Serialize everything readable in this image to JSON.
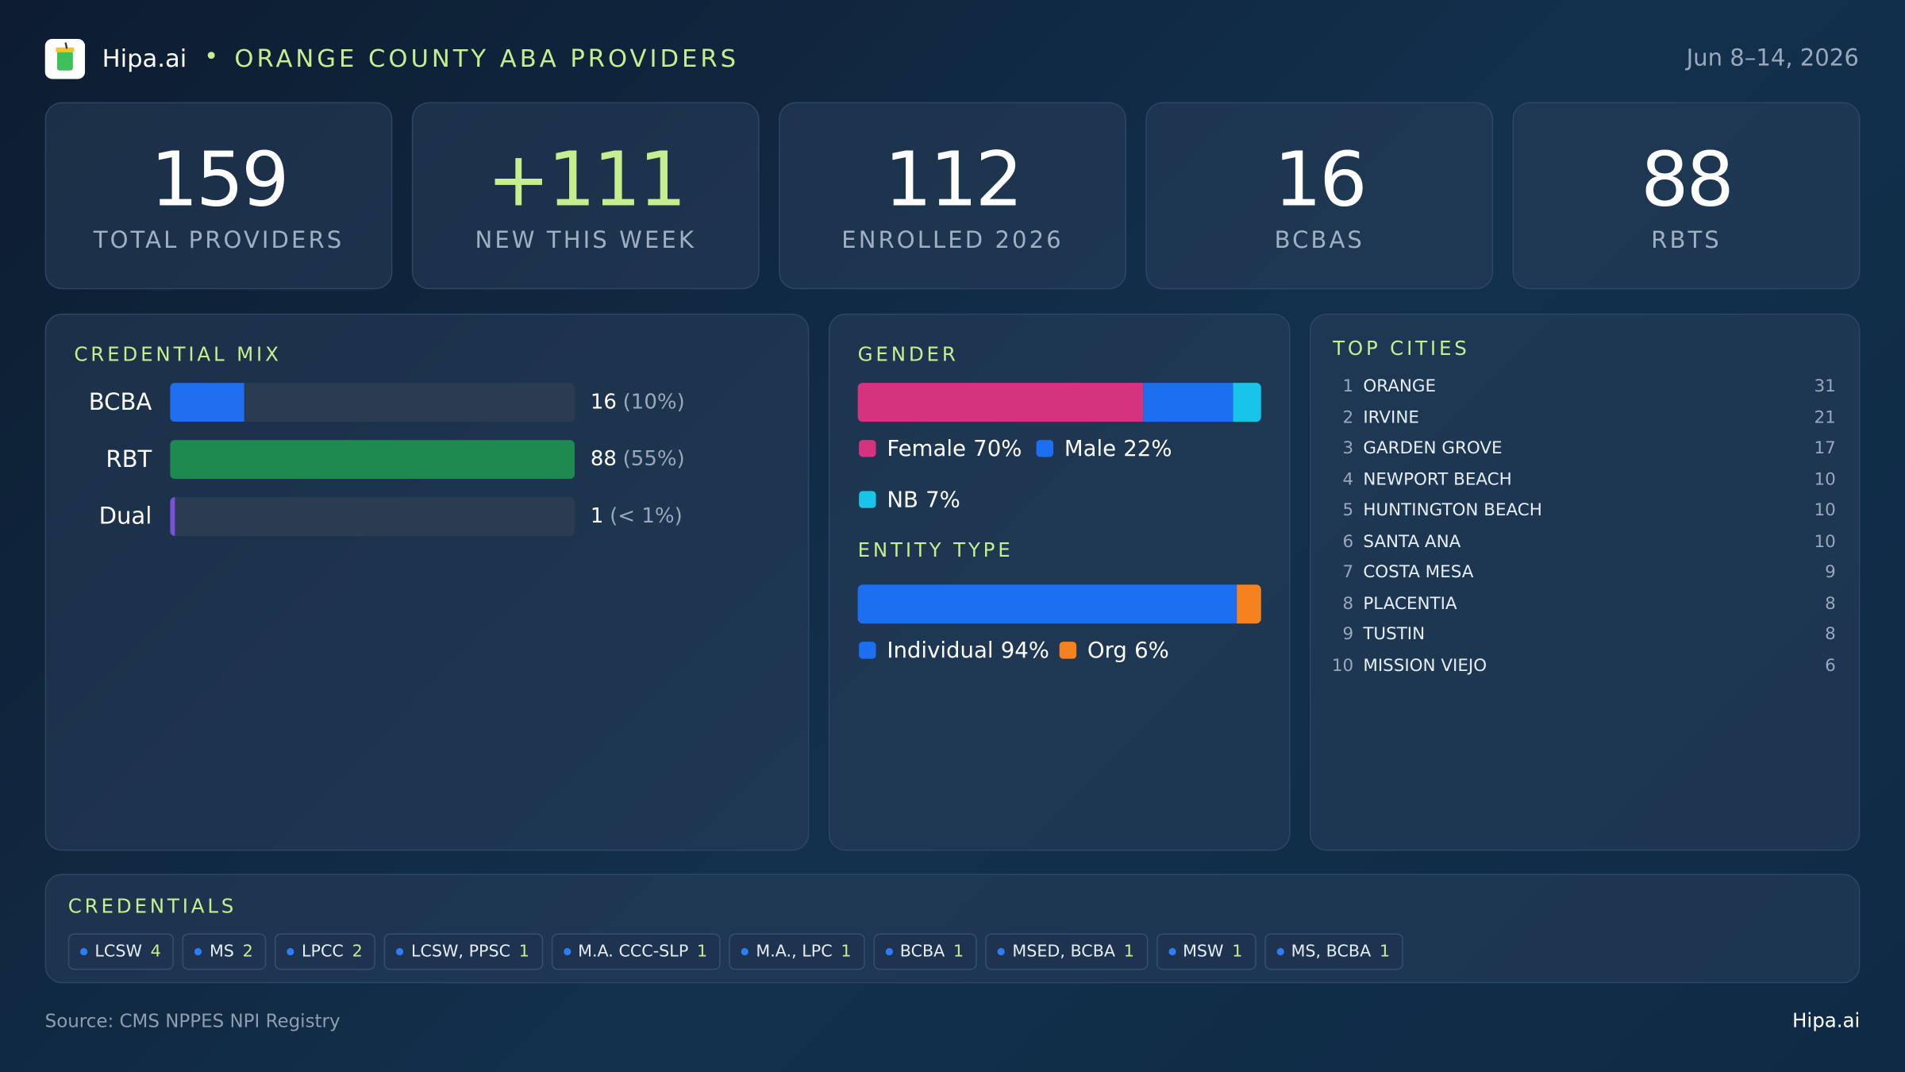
{
  "header": {
    "brand": "Hipa.ai",
    "title": "ORANGE COUNTY ABA PROVIDERS",
    "date": "Jun 8–14, 2026"
  },
  "kpis": [
    {
      "value": "159",
      "label": "TOTAL PROVIDERS"
    },
    {
      "value": "+111",
      "label": "NEW THIS WEEK"
    },
    {
      "value": "112",
      "label": "ENROLLED 2026"
    },
    {
      "value": "16",
      "label": "BCBAS"
    },
    {
      "value": "88",
      "label": "RBTS"
    }
  ],
  "credential_mix": {
    "type": "bar",
    "title": "CREDENTIAL MIX",
    "categories": [
      "BCBA",
      "RBT",
      "Dual"
    ],
    "values": [
      16,
      88,
      1
    ],
    "percent_labels": [
      "(10%)",
      "(55%)",
      "(< 1%)"
    ],
    "colors": [
      "#1f6ff0",
      "#1e8a50",
      "#7b4fd6"
    ],
    "xlim": [
      0,
      88
    ]
  },
  "gender": {
    "type": "stacked-bar",
    "title": "GENDER",
    "xlim": [
      0,
      99
    ],
    "series": [
      {
        "name": "Female",
        "color": "#d6337f",
        "values": [
          70
        ],
        "value_labels": [
          "70%"
        ]
      },
      {
        "name": "Male",
        "color": "#1c6ff0",
        "values": [
          22
        ],
        "value_labels": [
          "22%"
        ]
      },
      {
        "name": "NB",
        "color": "#18c4e8",
        "values": [
          7
        ],
        "value_labels": [
          "7%"
        ]
      }
    ]
  },
  "entity_type": {
    "type": "stacked-bar",
    "title": "ENTITY TYPE",
    "xlim": [
      0,
      100
    ],
    "series": [
      {
        "name": "Individual",
        "color": "#1c6ff0",
        "values": [
          94
        ],
        "value_labels": [
          "94%"
        ]
      },
      {
        "name": "Org",
        "color": "#f5821f",
        "values": [
          6
        ],
        "value_labels": [
          "6%"
        ]
      }
    ]
  },
  "top_cities": {
    "title": "TOP CITIES",
    "rows": [
      {
        "rank": "1",
        "city": "ORANGE",
        "count": "31"
      },
      {
        "rank": "2",
        "city": "IRVINE",
        "count": "21"
      },
      {
        "rank": "3",
        "city": "GARDEN GROVE",
        "count": "17"
      },
      {
        "rank": "4",
        "city": "NEWPORT BEACH",
        "count": "10"
      },
      {
        "rank": "5",
        "city": "HUNTINGTON BEACH",
        "count": "10"
      },
      {
        "rank": "6",
        "city": "SANTA ANA",
        "count": "10"
      },
      {
        "rank": "7",
        "city": "COSTA MESA",
        "count": "9"
      },
      {
        "rank": "8",
        "city": "PLACENTIA",
        "count": "8"
      },
      {
        "rank": "9",
        "city": "TUSTIN",
        "count": "8"
      },
      {
        "rank": "10",
        "city": "MISSION VIEJO",
        "count": "6"
      }
    ]
  },
  "credentials": {
    "title": "CREDENTIALS",
    "chips": [
      {
        "label": "LCSW",
        "count": "4"
      },
      {
        "label": "MS",
        "count": "2"
      },
      {
        "label": "LPCC",
        "count": "2"
      },
      {
        "label": "LCSW, PPSC",
        "count": "1"
      },
      {
        "label": "M.A. CCC-SLP",
        "count": "1"
      },
      {
        "label": "M.A., LPC",
        "count": "1"
      },
      {
        "label": "BCBA",
        "count": "1"
      },
      {
        "label": "MSED, BCBA",
        "count": "1"
      },
      {
        "label": "MSW",
        "count": "1"
      },
      {
        "label": "MS, BCBA",
        "count": "1"
      }
    ]
  },
  "footer": {
    "source": "Source: CMS NPPES NPI Registry",
    "brand": "Hipa.ai"
  }
}
